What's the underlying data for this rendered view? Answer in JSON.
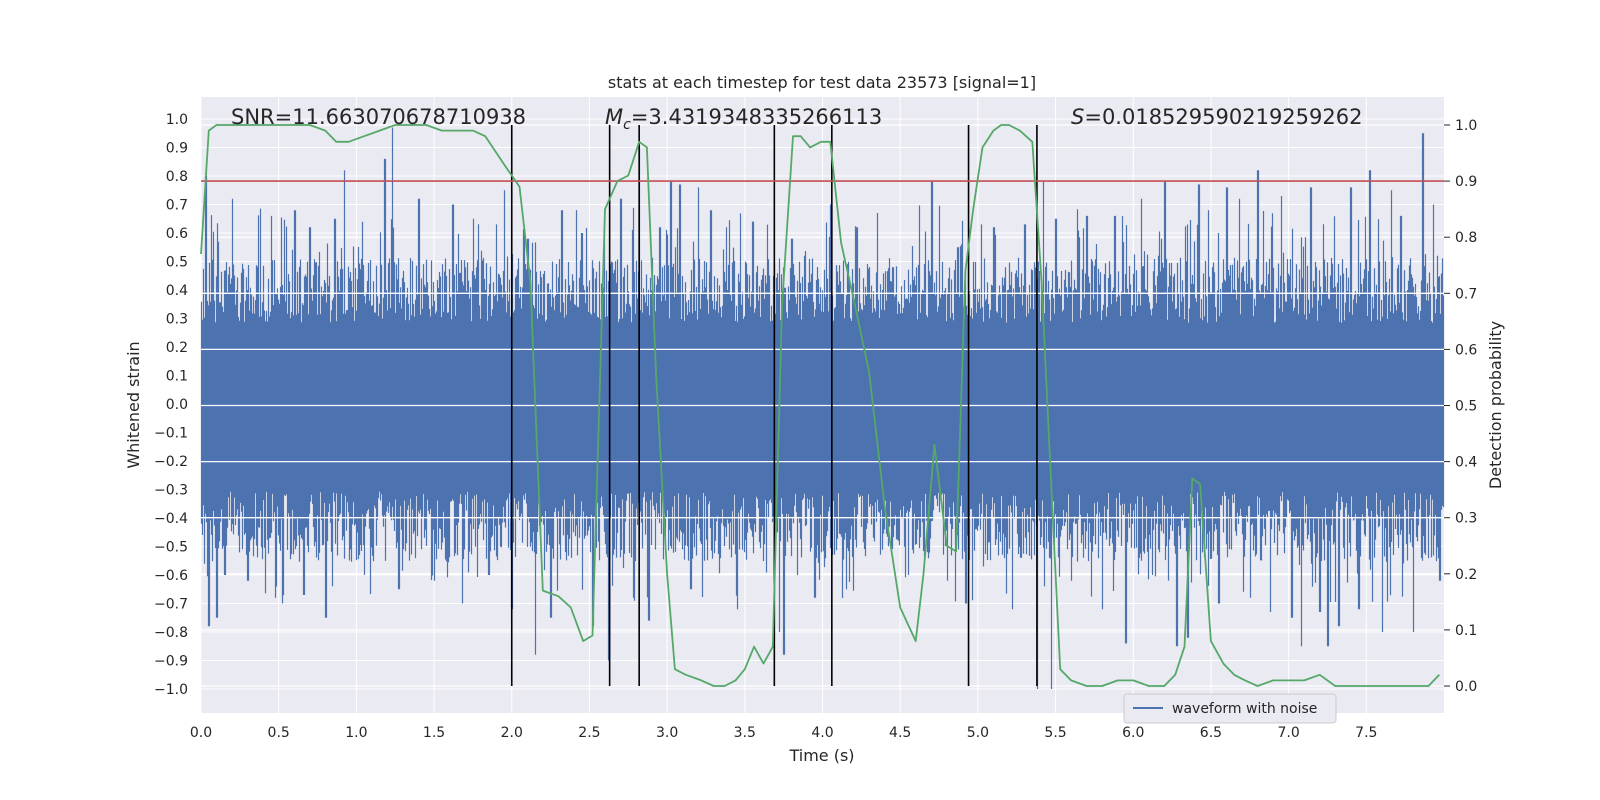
{
  "chart_data": {
    "type": "line",
    "title": "stats at each timestep for test data 23573 [signal=1]",
    "xlabel": "Time (s)",
    "ylabel": "Whitened strain",
    "y2label": "Detection probability",
    "xlim": [
      0.0,
      8.0
    ],
    "ylim": [
      -1.1,
      1.06
    ],
    "y2lim": [
      -0.048,
      1.035
    ],
    "xticks": [
      "0.0",
      "0.5",
      "1.0",
      "1.5",
      "2.0",
      "2.5",
      "3.0",
      "3.5",
      "4.0",
      "4.5",
      "5.0",
      "5.5",
      "6.0",
      "6.5",
      "7.0",
      "7.5"
    ],
    "yticks": [
      "1.0",
      "0.9",
      "0.8",
      "0.7",
      "0.6",
      "0.5",
      "0.4",
      "0.3",
      "0.2",
      "0.1",
      "0.0",
      "−0.1",
      "−0.2",
      "−0.3",
      "−0.4",
      "−0.5",
      "−0.6",
      "−0.7",
      "−0.8",
      "−0.9",
      "−1.0"
    ],
    "y2ticks": [
      "1.0",
      "0.9",
      "0.8",
      "0.7",
      "0.6",
      "0.5",
      "0.4",
      "0.3",
      "0.2",
      "0.1",
      "0.0"
    ],
    "grid": true,
    "legend": {
      "placement": "lower-right",
      "entries": [
        "waveform with noise"
      ]
    },
    "annotations": {
      "snr": "SNR=11.663070678710938",
      "mc_symbol": "M",
      "mc_sub": "c",
      "mc_value": "=3.4319348335266113",
      "s_symbol": "S",
      "s_value": "=0.018529590219259262"
    },
    "threshold": {
      "value": 0.9,
      "axis": "y2",
      "color": "#c44e52"
    },
    "vertical_lines": [
      2.0,
      2.63,
      2.82,
      3.69,
      4.06,
      4.94,
      5.38
    ],
    "series": [
      {
        "name": "waveform with noise",
        "type": "waveform",
        "color": "#4c72b0",
        "typical_envelope": {
          "upper": 0.38,
          "lower": -0.41
        },
        "spikes": [
          [
            0.03,
            0.8
          ],
          [
            0.05,
            -0.78
          ],
          [
            0.1,
            -0.75
          ],
          [
            0.15,
            -0.6
          ],
          [
            0.2,
            0.72
          ],
          [
            0.3,
            -0.62
          ],
          [
            0.45,
            0.66
          ],
          [
            0.52,
            -0.7
          ],
          [
            0.6,
            0.68
          ],
          [
            0.66,
            -0.67
          ],
          [
            0.7,
            0.62
          ],
          [
            0.8,
            -0.75
          ],
          [
            0.86,
            0.65
          ],
          [
            0.92,
            0.82
          ],
          [
            1.05,
            -0.6
          ],
          [
            1.18,
            0.86
          ],
          [
            1.23,
            0.97
          ],
          [
            1.27,
            -0.65
          ],
          [
            1.4,
            0.72
          ],
          [
            1.5,
            -0.62
          ],
          [
            1.62,
            0.7
          ],
          [
            1.68,
            -0.7
          ],
          [
            1.75,
            0.65
          ],
          [
            1.85,
            -0.6
          ],
          [
            1.9,
            0.63
          ],
          [
            1.95,
            0.75
          ],
          [
            2.0,
            -0.72
          ],
          [
            2.1,
            0.58
          ],
          [
            2.15,
            -0.88
          ],
          [
            2.25,
            -0.75
          ],
          [
            2.32,
            0.68
          ],
          [
            2.45,
            0.6
          ],
          [
            2.52,
            -0.78
          ],
          [
            2.62,
            -0.9
          ],
          [
            2.7,
            0.72
          ],
          [
            2.78,
            -0.68
          ],
          [
            2.82,
            0.9
          ],
          [
            2.88,
            -0.76
          ],
          [
            2.95,
            0.62
          ],
          [
            3.02,
            0.78
          ],
          [
            3.08,
            0.77
          ],
          [
            3.15,
            -0.65
          ],
          [
            3.2,
            0.76
          ],
          [
            3.28,
            0.68
          ],
          [
            3.38,
            0.62
          ],
          [
            3.45,
            -0.72
          ],
          [
            3.55,
            0.64
          ],
          [
            3.72,
            -0.8
          ],
          [
            3.75,
            -0.88
          ],
          [
            3.8,
            0.58
          ],
          [
            3.88,
            0.52
          ],
          [
            3.95,
            -0.68
          ],
          [
            4.05,
            0.7
          ],
          [
            4.15,
            -0.65
          ],
          [
            4.22,
            0.62
          ],
          [
            4.35,
            0.67
          ],
          [
            4.45,
            0.48
          ],
          [
            4.55,
            -0.6
          ],
          [
            4.7,
            0.78
          ],
          [
            4.8,
            -0.62
          ],
          [
            4.87,
            0.55
          ],
          [
            4.92,
            -0.7
          ],
          [
            5.02,
            0.63
          ],
          [
            5.1,
            0.62
          ],
          [
            5.22,
            -0.72
          ],
          [
            5.3,
            0.63
          ],
          [
            5.38,
            -1.0
          ],
          [
            5.42,
            0.78
          ],
          [
            5.47,
            -1.0
          ],
          [
            5.5,
            0.65
          ],
          [
            5.6,
            -0.62
          ],
          [
            5.7,
            0.66
          ],
          [
            5.8,
            -0.72
          ],
          [
            5.88,
            0.66
          ],
          [
            5.95,
            -0.84
          ],
          [
            6.05,
            0.72
          ],
          [
            6.12,
            -0.6
          ],
          [
            6.2,
            0.78
          ],
          [
            6.28,
            -0.85
          ],
          [
            6.35,
            -0.82
          ],
          [
            6.42,
            0.77
          ],
          [
            6.48,
            0.68
          ],
          [
            6.55,
            -0.7
          ],
          [
            6.6,
            0.76
          ],
          [
            6.68,
            0.72
          ],
          [
            6.75,
            -0.68
          ],
          [
            6.8,
            0.82
          ],
          [
            6.88,
            -0.73
          ],
          [
            6.95,
            0.73
          ],
          [
            7.02,
            -0.75
          ],
          [
            7.08,
            -0.85
          ],
          [
            7.14,
            0.76
          ],
          [
            7.2,
            -0.73
          ],
          [
            7.25,
            -0.85
          ],
          [
            7.32,
            -0.78
          ],
          [
            7.4,
            0.76
          ],
          [
            7.45,
            -0.72
          ],
          [
            7.52,
            0.82
          ],
          [
            7.6,
            -0.8
          ],
          [
            7.66,
            0.75
          ],
          [
            7.72,
            0.66
          ],
          [
            7.8,
            -0.8
          ],
          [
            7.86,
            0.95
          ],
          [
            7.93,
            0.7
          ],
          [
            7.97,
            -0.62
          ]
        ]
      },
      {
        "name": "",
        "type": "probability",
        "color": "#55a868",
        "axis": "y2",
        "x": [
          0.0,
          0.05,
          0.1,
          0.2,
          0.3,
          0.4,
          0.5,
          0.6,
          0.7,
          0.8,
          0.87,
          0.95,
          1.05,
          1.15,
          1.25,
          1.35,
          1.45,
          1.55,
          1.65,
          1.75,
          1.83,
          1.95,
          2.05,
          2.12,
          2.2,
          2.3,
          2.38,
          2.46,
          2.52,
          2.6,
          2.68,
          2.75,
          2.82,
          2.87,
          2.93,
          3.0,
          3.05,
          3.12,
          3.22,
          3.3,
          3.37,
          3.44,
          3.5,
          3.56,
          3.62,
          3.68,
          3.74,
          3.81,
          3.86,
          3.92,
          3.99,
          4.05,
          4.12,
          4.2,
          4.3,
          4.4,
          4.5,
          4.6,
          4.65,
          4.72,
          4.8,
          4.86,
          4.92,
          4.97,
          5.03,
          5.1,
          5.15,
          5.2,
          5.27,
          5.35,
          5.41,
          5.47,
          5.53,
          5.6,
          5.7,
          5.8,
          5.9,
          6.0,
          6.1,
          6.2,
          6.27,
          6.33,
          6.38,
          6.43,
          6.5,
          6.58,
          6.65,
          6.72,
          6.8,
          6.9,
          7.0,
          7.1,
          7.2,
          7.3,
          7.4,
          7.5,
          7.6,
          7.7,
          7.8,
          7.9,
          7.97
        ],
        "values": [
          0.77,
          0.99,
          1.0,
          1.0,
          1.0,
          1.0,
          1.0,
          1.0,
          1.0,
          0.99,
          0.97,
          0.97,
          0.98,
          0.99,
          1.0,
          1.0,
          1.0,
          0.99,
          0.99,
          0.99,
          0.98,
          0.93,
          0.89,
          0.72,
          0.17,
          0.16,
          0.14,
          0.08,
          0.09,
          0.85,
          0.9,
          0.91,
          0.97,
          0.96,
          0.55,
          0.2,
          0.03,
          0.02,
          0.01,
          0.0,
          0.0,
          0.01,
          0.03,
          0.07,
          0.04,
          0.07,
          0.68,
          0.98,
          0.98,
          0.96,
          0.97,
          0.97,
          0.79,
          0.69,
          0.56,
          0.32,
          0.14,
          0.08,
          0.2,
          0.43,
          0.25,
          0.24,
          0.74,
          0.85,
          0.96,
          0.99,
          1.0,
          1.0,
          0.99,
          0.97,
          0.72,
          0.37,
          0.03,
          0.01,
          0.0,
          0.0,
          0.01,
          0.01,
          0.0,
          0.0,
          0.02,
          0.07,
          0.37,
          0.36,
          0.08,
          0.04,
          0.02,
          0.01,
          0.0,
          0.01,
          0.01,
          0.01,
          0.02,
          0.0,
          0.0,
          0.0,
          0.0,
          0.0,
          0.0,
          0.0,
          0.02
        ]
      }
    ]
  }
}
